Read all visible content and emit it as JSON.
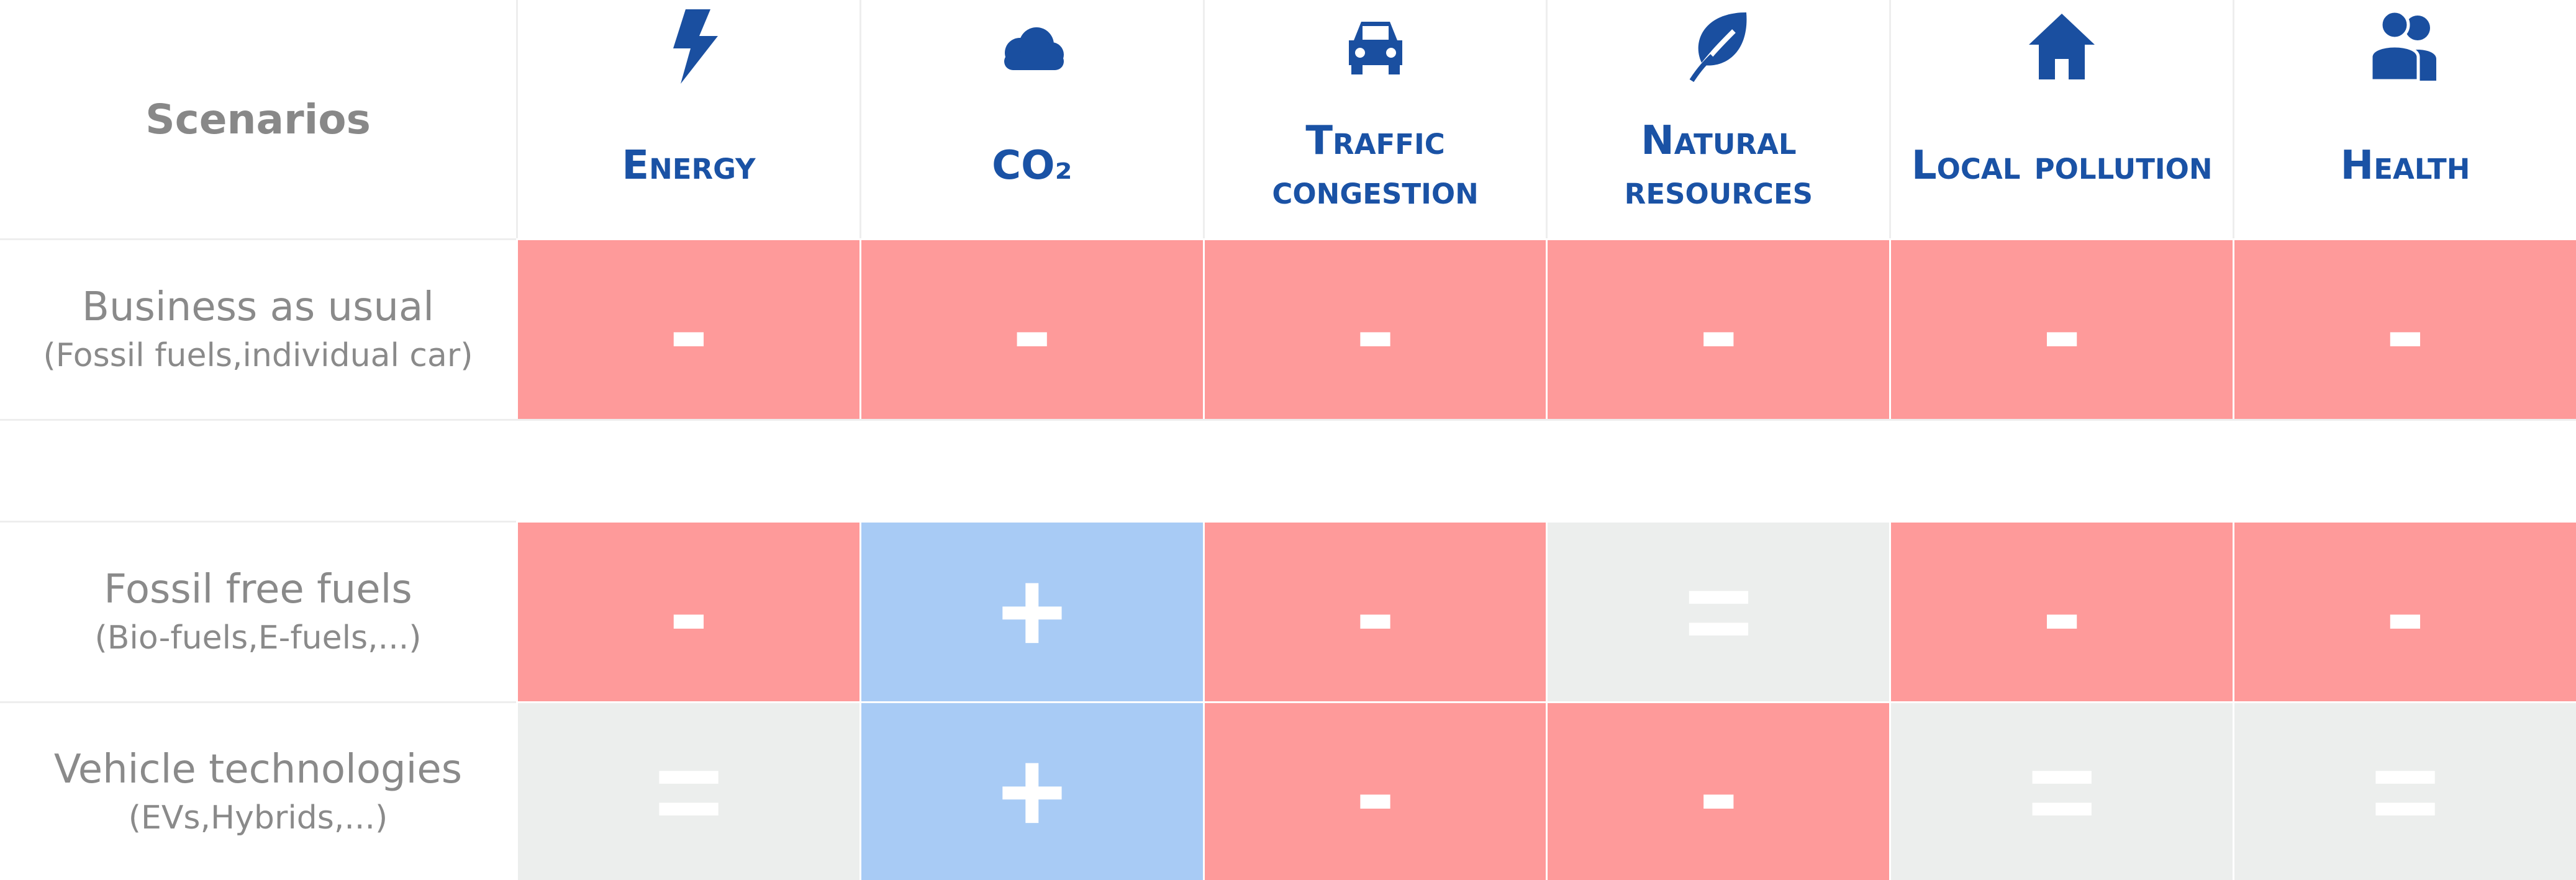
{
  "header": {
    "title": "Scenarios",
    "columns": [
      "Energy",
      "CO₂",
      "Traffic congestion",
      "Natural resources",
      "Local pollution",
      "Health"
    ]
  },
  "cell_colors": {
    "-": "#fe9a9a",
    "+": "#a8cbf5",
    "=": "#eceeed"
  },
  "rows": [
    {
      "label": "Business as usual",
      "sublabel": "(Fossil fuels,individual car)",
      "cells": [
        "-",
        "-",
        "-",
        "-",
        "-",
        "-"
      ]
    },
    {
      "label": "Fossil free fuels",
      "sublabel": "(Bio-fuels,E-fuels,...)",
      "cells": [
        "-",
        "+",
        "-",
        "=",
        "-",
        "-"
      ]
    },
    {
      "label": "Vehicle technologies",
      "sublabel": "(EVs,Hybrids,...)",
      "cells": [
        "=",
        "+",
        "-",
        "-",
        "=",
        "="
      ]
    }
  ]
}
